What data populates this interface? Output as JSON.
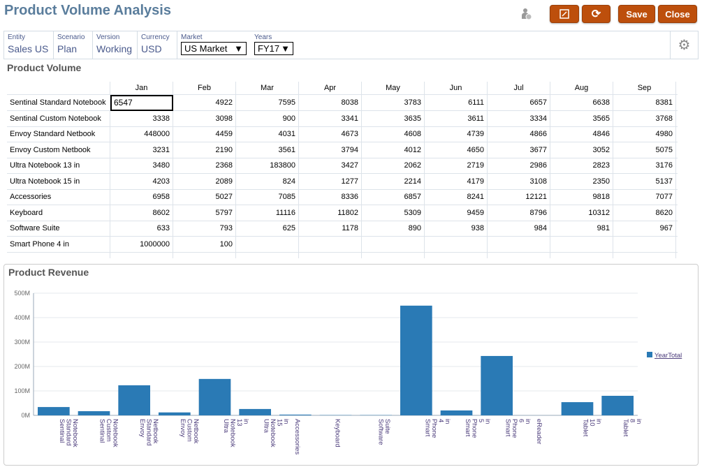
{
  "header": {
    "title": "Product Volume Analysis",
    "save_label": "Save",
    "close_label": "Close"
  },
  "pov": [
    {
      "label": "Entity",
      "value": "Sales US"
    },
    {
      "label": "Scenario",
      "value": "Plan"
    },
    {
      "label": "Version",
      "value": "Working"
    },
    {
      "label": "Currency",
      "value": "USD"
    },
    {
      "label": "Market",
      "value": "US Market"
    },
    {
      "label": "Years",
      "value": "FY17"
    }
  ],
  "grid": {
    "title": "Product Volume",
    "columns": [
      "Jan",
      "Feb",
      "Mar",
      "Apr",
      "May",
      "Jun",
      "Jul",
      "Aug",
      "Sep"
    ],
    "rows": [
      {
        "label": "Sentinal Standard Notebook",
        "values": [
          "6547",
          "4922",
          "7595",
          "8038",
          "3783",
          "6111",
          "6657",
          "6638",
          "8381"
        ]
      },
      {
        "label": "Sentinal Custom Notebook",
        "values": [
          "3338",
          "3098",
          "900",
          "3341",
          "3635",
          "3611",
          "3334",
          "3565",
          "3768"
        ]
      },
      {
        "label": "Envoy Standard Netbook",
        "values": [
          "448000",
          "4459",
          "4031",
          "4673",
          "4608",
          "4739",
          "4866",
          "4846",
          "4980"
        ]
      },
      {
        "label": "Envoy Custom Netbook",
        "values": [
          "3231",
          "2190",
          "3561",
          "3794",
          "4012",
          "4650",
          "3677",
          "3052",
          "5075"
        ]
      },
      {
        "label": "Ultra Notebook 13 in",
        "values": [
          "3480",
          "2368",
          "183800",
          "3427",
          "2062",
          "2719",
          "2986",
          "2823",
          "3176"
        ]
      },
      {
        "label": "Ultra Notebook 15 in",
        "values": [
          "4203",
          "2089",
          "824",
          "1277",
          "2214",
          "4179",
          "3108",
          "2350",
          "5137"
        ]
      },
      {
        "label": "Accessories",
        "values": [
          "6958",
          "5027",
          "7085",
          "8336",
          "6857",
          "8241",
          "12121",
          "9818",
          "7077"
        ]
      },
      {
        "label": "Keyboard",
        "values": [
          "8602",
          "5797",
          "11116",
          "11802",
          "5309",
          "9459",
          "8796",
          "10312",
          "8620"
        ]
      },
      {
        "label": "Software Suite",
        "values": [
          "633",
          "793",
          "625",
          "1178",
          "890",
          "938",
          "984",
          "981",
          "967"
        ]
      },
      {
        "label": "Smart Phone 4 in",
        "values": [
          "1000000",
          "100",
          "",
          "",
          "",
          "",
          "",
          "",
          ""
        ]
      }
    ]
  },
  "chart_data": {
    "type": "bar",
    "title": "Product Revenue",
    "categories": [
      "Sentinal Standard Notebook",
      "Sentinal Custom Notebook",
      "Envoy Standard Netbook",
      "Envoy Custom Netbook",
      "Ultra Notebook 13 in",
      "Ultra Notebook 15 in",
      "Accessories",
      "Keyboard",
      "Software Suite",
      "Smart Phone 4 in",
      "Smart Phone 5 in",
      "Smart Phone 6 in",
      "eReader",
      "Tablet 10 in",
      "Tablet 8 in"
    ],
    "series": [
      {
        "name": "YearTotal",
        "values": [
          34,
          17,
          123,
          12,
          149,
          26,
          3,
          1,
          1,
          449,
          20,
          243,
          0,
          54,
          80
        ]
      }
    ],
    "yticks": [
      "0M",
      "100M",
      "200M",
      "300M",
      "400M",
      "500M"
    ],
    "ylim": [
      0,
      500
    ],
    "yunit": "M",
    "legend": "right",
    "grid": true,
    "color": "#2a7ab5"
  }
}
